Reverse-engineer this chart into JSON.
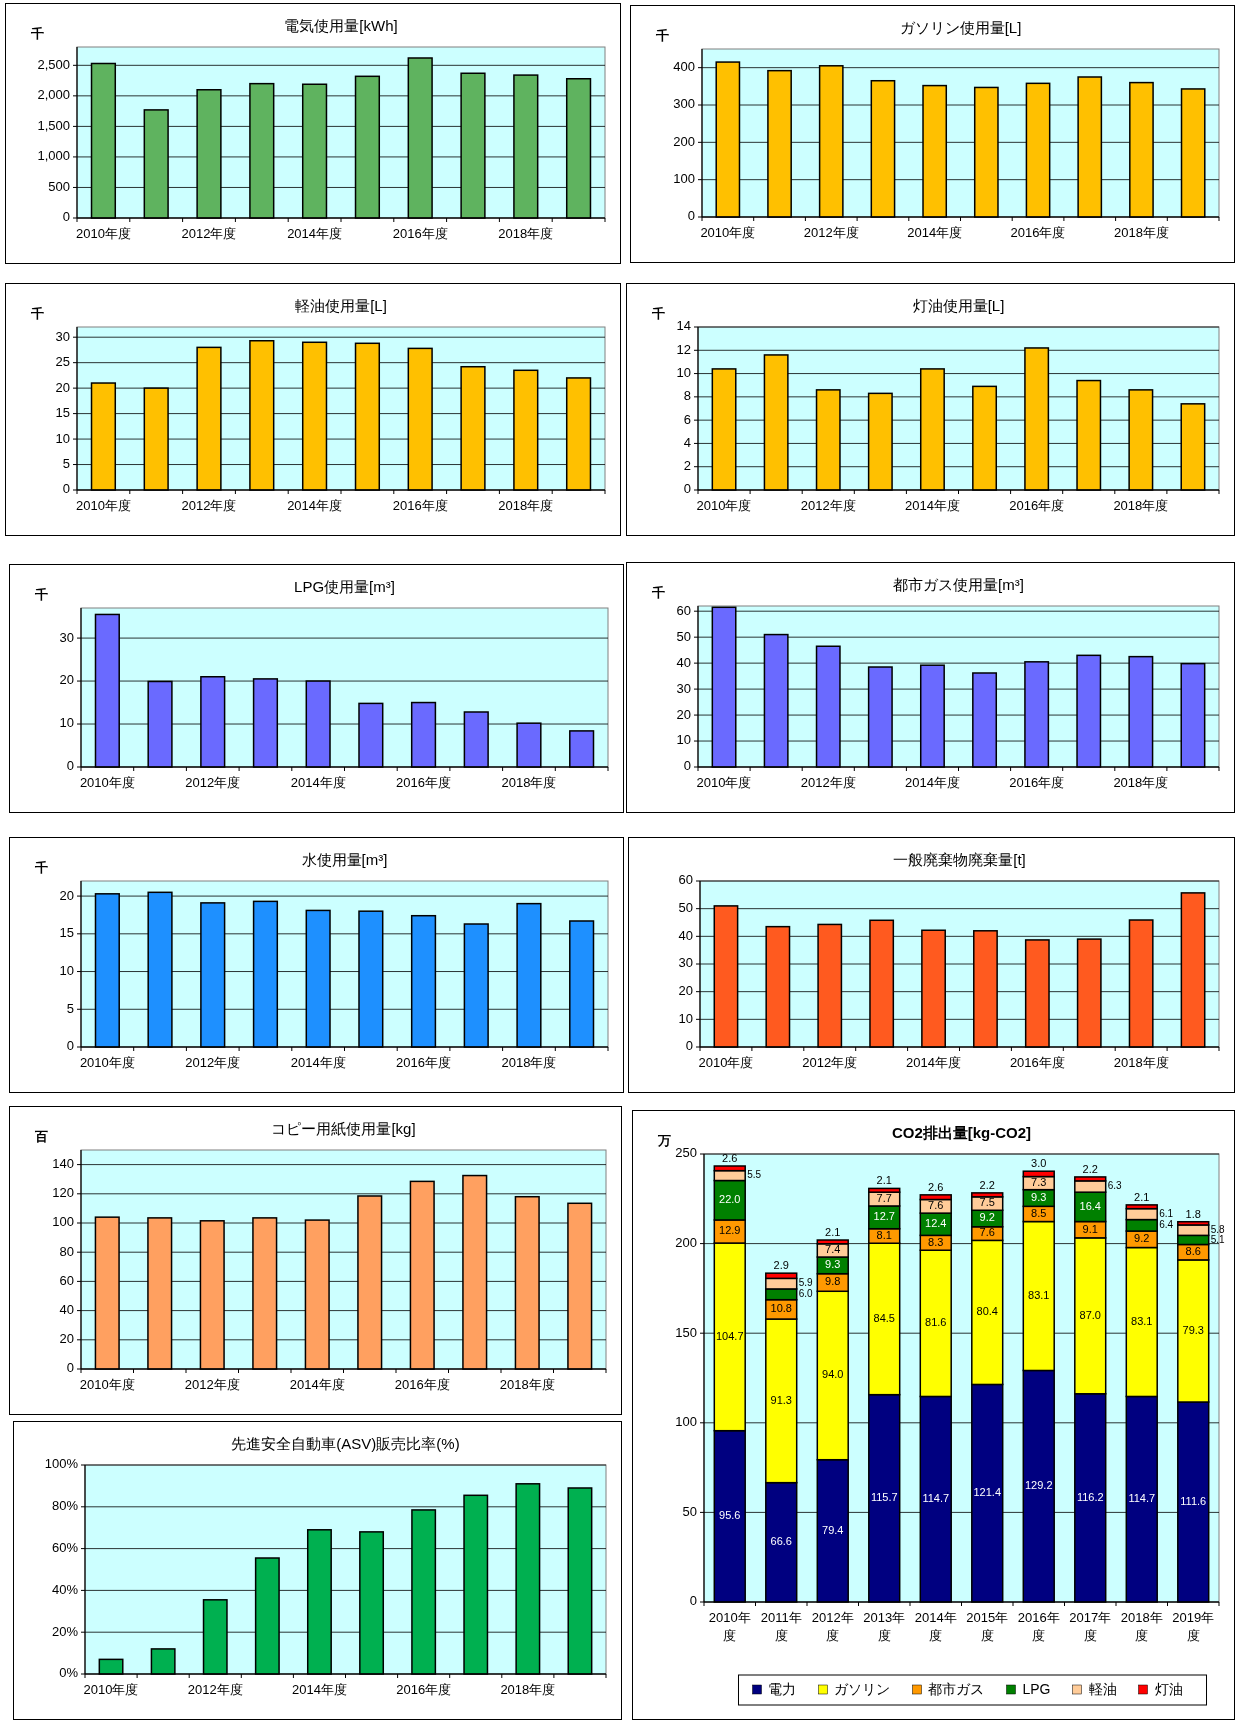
{
  "chart_data": [
    {
      "type": "bar",
      "title": "電気使用量[kWh]",
      "ylabel": "千",
      "categories": [
        "2010年度",
        null,
        "2012年度",
        null,
        "2014年度",
        null,
        "2016年度",
        null,
        "2018年度",
        null
      ],
      "values": [
        2530,
        1770,
        2100,
        2200,
        2190,
        2320,
        2620,
        2370,
        2340,
        2280
      ],
      "color": "#5fb35f",
      "ylim": [
        0,
        2800
      ],
      "yticks": [
        0,
        500,
        {
          "value": 1000,
          "label": "1,000"
        },
        {
          "value": 1500,
          "label": "1,500"
        },
        {
          "value": 2000,
          "label": "2,000"
        },
        {
          "value": 2500,
          "label": "2,500"
        }
      ],
      "grid": "y"
    },
    {
      "type": "bar",
      "title": "ガソリン使用量[L]",
      "ylabel": "千",
      "categories": [
        "2010年度",
        null,
        "2012年度",
        null,
        "2014年度",
        null,
        "2016年度",
        null,
        "2018年度",
        null
      ],
      "values": [
        415,
        392,
        405,
        365,
        352,
        347,
        358,
        375,
        360,
        343
      ],
      "color": "#ffc000",
      "ylim": [
        0,
        450
      ],
      "yticks": [
        0,
        100,
        200,
        300,
        400
      ],
      "grid": "y"
    },
    {
      "type": "bar",
      "title": "軽油使用量[L]",
      "ylabel": "千",
      "categories": [
        "2010年度",
        null,
        "2012年度",
        null,
        "2014年度",
        null,
        "2016年度",
        null,
        "2018年度",
        null
      ],
      "values": [
        21,
        20,
        28,
        29.3,
        29,
        28.8,
        27.8,
        24.2,
        23.5,
        22
      ],
      "color": "#ffc000",
      "ylim": [
        0,
        32
      ],
      "yticks": [
        0,
        5,
        10,
        15,
        20,
        25,
        30
      ],
      "grid": "y"
    },
    {
      "type": "bar",
      "title": "灯油使用量[L]",
      "ylabel": "千",
      "categories": [
        "2010年度",
        null,
        "2012年度",
        null,
        "2014年度",
        null,
        "2016年度",
        null,
        "2018年度",
        null
      ],
      "values": [
        10.4,
        11.6,
        8.6,
        8.3,
        10.4,
        8.9,
        12.2,
        9.4,
        8.6,
        7.4
      ],
      "color": "#ffc000",
      "ylim": [
        0,
        14
      ],
      "yticks": [
        0,
        2,
        4,
        6,
        8,
        10,
        12,
        14
      ],
      "grid": "y"
    },
    {
      "type": "bar",
      "title": "LPG使用量[m³]",
      "ylabel": "千",
      "categories": [
        "2010年度",
        null,
        "2012年度",
        null,
        "2014年度",
        null,
        "2016年度",
        null,
        "2018年度",
        null
      ],
      "values": [
        35.5,
        19.9,
        21,
        20.5,
        20,
        14.8,
        15,
        12.8,
        10.2,
        8.4
      ],
      "color": "#6a6aff",
      "ylim": [
        0,
        37
      ],
      "yticks": [
        0,
        10,
        20,
        30
      ],
      "grid": "y"
    },
    {
      "type": "bar",
      "title": "都市ガス使用量[m³]",
      "ylabel": "千",
      "categories": [
        "2010年度",
        null,
        "2012年度",
        null,
        "2014年度",
        null,
        "2016年度",
        null,
        "2018年度",
        null
      ],
      "values": [
        61.5,
        51,
        46.5,
        38.5,
        39.2,
        36.2,
        40.5,
        43,
        42.5,
        39.8
      ],
      "color": "#6a6aff",
      "ylim": [
        0,
        62
      ],
      "yticks": [
        0,
        10,
        20,
        30,
        40,
        50,
        60
      ],
      "grid": "y"
    },
    {
      "type": "bar",
      "title": "水使用量[m³]",
      "ylabel": "千",
      "categories": [
        "2010年度",
        null,
        "2012年度",
        null,
        "2014年度",
        null,
        "2016年度",
        null,
        "2018年度",
        null
      ],
      "values": [
        20.3,
        20.5,
        19.1,
        19.3,
        18.1,
        18.0,
        17.4,
        16.3,
        19.0,
        16.7
      ],
      "color": "#1e90ff",
      "ylim": [
        0,
        22
      ],
      "yticks": [
        0,
        5,
        10,
        15,
        20
      ],
      "grid": "y"
    },
    {
      "type": "bar",
      "title": "一般廃棄物廃棄量[t]",
      "categories": [
        "2010年度",
        null,
        "2012年度",
        null,
        "2014年度",
        null,
        "2016年度",
        null,
        "2018年度",
        null
      ],
      "values": [
        51,
        43.5,
        44.3,
        45.8,
        42.2,
        42,
        38.7,
        39,
        45.9,
        55.7
      ],
      "color": "#ff5a1f",
      "ylim": [
        0,
        60
      ],
      "yticks": [
        0,
        10,
        20,
        30,
        40,
        50,
        60
      ],
      "grid": "y"
    },
    {
      "type": "bar",
      "title": "コピー用紙使用量[kg]",
      "ylabel": "百",
      "categories": [
        "2010年度",
        null,
        "2012年度",
        null,
        "2014年度",
        null,
        "2016年度",
        null,
        "2018年度",
        null
      ],
      "values": [
        104,
        103.5,
        101.5,
        103.5,
        102,
        118.5,
        128.5,
        132.5,
        118,
        113.5
      ],
      "color": "#ffa060",
      "ylim": [
        0,
        150
      ],
      "yticks": [
        0,
        20,
        40,
        60,
        80,
        100,
        120,
        140
      ],
      "grid": "y"
    },
    {
      "type": "bar",
      "title": "先進安全自動車(ASV)販売比率(%)",
      "categories": [
        "2010年度",
        null,
        "2012年度",
        null,
        "2014年度",
        null,
        "2016年度",
        null,
        "2018年度",
        null
      ],
      "values": [
        7,
        12,
        35.5,
        55.5,
        69,
        68,
        78.5,
        85.5,
        91,
        89
      ],
      "color": "#00b050",
      "ylim": [
        0,
        100
      ],
      "yticks": [
        {
          "value": 0,
          "label": "0%"
        },
        {
          "value": 20,
          "label": "20%"
        },
        {
          "value": 40,
          "label": "40%"
        },
        {
          "value": 60,
          "label": "60%"
        },
        {
          "value": 80,
          "label": "80%"
        },
        {
          "value": 100,
          "label": "100%"
        }
      ],
      "grid": "y"
    },
    {
      "type": "bar",
      "title": "CO2排出量[kg-CO2]",
      "ylabel": "万",
      "stacked": true,
      "legend": "bottom",
      "categories": [
        "2010年度",
        "2011年度",
        "2012年度",
        "2013年度",
        "2014年度",
        "2015年度",
        "2016年度",
        "2017年度",
        "2018年度",
        "2019年度"
      ],
      "ylim": [
        0,
        250
      ],
      "yticks": [
        0,
        50,
        100,
        150,
        200,
        250
      ],
      "grid": "y",
      "series": [
        {
          "name": "電力",
          "color": "#000080",
          "values": [
            95.6,
            66.6,
            79.4,
            115.7,
            114.7,
            121.4,
            129.2,
            116.2,
            114.7,
            111.6
          ],
          "value_labels": [
            "95.6",
            "66.6",
            "79.4",
            "115.7",
            "114.7",
            "121.4",
            "129.2",
            "116.2",
            "114.7",
            "111.6"
          ]
        },
        {
          "name": "ガソリン",
          "color": "#ffff00",
          "values": [
            104.7,
            91.3,
            94.0,
            84.5,
            81.6,
            80.4,
            83.1,
            87.0,
            83.1,
            79.3
          ],
          "value_labels": [
            "104.7",
            "91.3",
            "94.0",
            "84.5",
            "81.6",
            "80.4",
            "83.1",
            "87.0",
            "83.1",
            "79.3"
          ]
        },
        {
          "name": "都市ガス",
          "color": "#ff9900",
          "values": [
            12.9,
            10.8,
            9.8,
            8.1,
            8.3,
            7.6,
            8.5,
            9.1,
            9.2,
            8.6
          ],
          "value_labels": [
            "12.9",
            "10.8",
            "9.8",
            "8.1",
            "8.3",
            "7.6",
            "8.5",
            "9.1",
            "9.2",
            "8.6"
          ]
        },
        {
          "name": "LPG",
          "color": "#008000",
          "values": [
            22.0,
            6.0,
            9.3,
            12.7,
            12.4,
            9.2,
            9.3,
            16.4,
            6.4,
            5.1
          ],
          "value_labels": [
            "22.0",
            "6.0",
            "9.3",
            "12.7",
            "12.4",
            "9.2",
            "9.3",
            "16.4",
            "6.4",
            "5.1"
          ]
        },
        {
          "name": "軽油",
          "color": "#ffcc99",
          "values": [
            5.5,
            5.9,
            7.4,
            7.7,
            7.6,
            7.5,
            7.3,
            6.3,
            6.1,
            5.8
          ],
          "value_labels": [
            "5.5",
            "5.9",
            "7.4",
            "7.7",
            "7.6",
            "7.5",
            "7.3",
            "6.3",
            "6.1",
            "5.8"
          ]
        },
        {
          "name": "灯油",
          "color": "#ff0000",
          "values": [
            2.6,
            2.9,
            2.1,
            2.1,
            2.6,
            2.2,
            3.0,
            2.2,
            2.1,
            1.8
          ],
          "value_labels": [
            "2.6",
            "2.9",
            "2.1",
            "2.1",
            "2.6",
            "2.2",
            "3.0",
            "2.2",
            "2.1",
            "1.8"
          ]
        }
      ]
    }
  ]
}
